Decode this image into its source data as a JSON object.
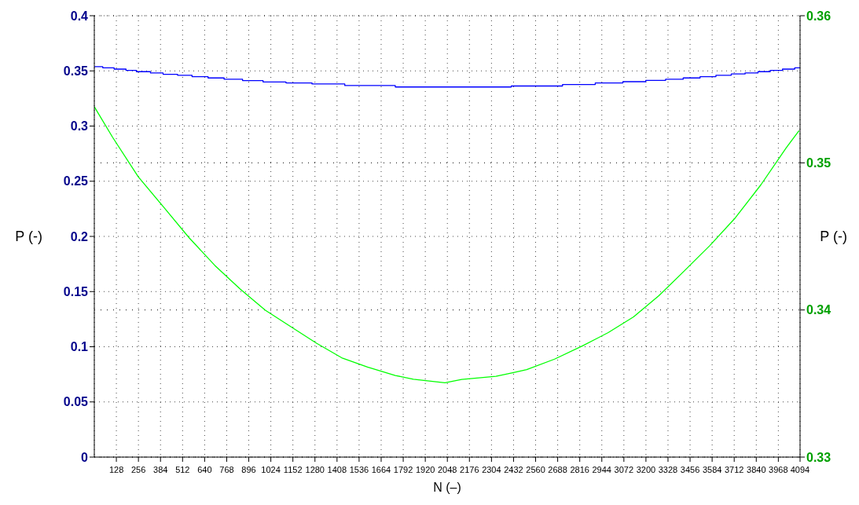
{
  "chart_data": {
    "type": "line",
    "xlabel": "N (–)",
    "ylabel": "P (-)",
    "y2label": "P (-)",
    "xlim": [
      0,
      4094
    ],
    "xticks": [
      128,
      256,
      384,
      512,
      640,
      768,
      896,
      1024,
      1152,
      1280,
      1408,
      1536,
      1664,
      1792,
      1920,
      2048,
      2176,
      2304,
      2432,
      2560,
      2688,
      2816,
      2944,
      3072,
      3200,
      3328,
      3456,
      3584,
      3712,
      3840,
      3968,
      4094
    ],
    "ylim": [
      0,
      0.4
    ],
    "yticks": [
      0,
      0.05,
      0.1,
      0.15,
      0.2,
      0.25,
      0.3,
      0.35,
      0.4
    ],
    "y2lim": [
      0.33,
      0.36
    ],
    "y2ticks": [
      0.33,
      0.34,
      0.35,
      0.36
    ],
    "grid": true,
    "series": [
      {
        "type": "step",
        "color": "#0000ff",
        "x": [
          0,
          49,
          115,
          184,
          244,
          326,
          399,
          483,
          567,
          660,
          753,
          860,
          979,
          1112,
          1263,
          1453,
          1746,
          2419,
          2716,
          2906,
          3066,
          3199,
          3314,
          3416,
          3514,
          3606,
          3695,
          3775,
          3850,
          3921,
          3992,
          4063,
          4094
        ],
        "values": [
          0.3538,
          0.3528,
          0.3516,
          0.3504,
          0.3493,
          0.3481,
          0.3469,
          0.346,
          0.3448,
          0.3436,
          0.3424,
          0.3412,
          0.34,
          0.3391,
          0.3381,
          0.3367,
          0.3354,
          0.3363,
          0.3377,
          0.339,
          0.3402,
          0.3414,
          0.3424,
          0.3436,
          0.3448,
          0.346,
          0.3472,
          0.3481,
          0.3493,
          0.3504,
          0.3516,
          0.3528,
          0.3528
        ]
      },
      {
        "axis": "y2",
        "color": "#00ff00",
        "x": [
          0,
          106,
          255,
          403,
          549,
          699,
          846,
          992,
          1142,
          1289,
          1435,
          1585,
          1746,
          1851,
          2034,
          2131,
          2330,
          2427,
          2508,
          2670,
          2832,
          2981,
          3128,
          3275,
          3424,
          3571,
          3719,
          3867,
          4014,
          4088
        ],
        "values": [
          0.35381,
          0.35174,
          0.34905,
          0.34698,
          0.34492,
          0.34303,
          0.34142,
          0.33998,
          0.33885,
          0.33774,
          0.33675,
          0.33612,
          0.33555,
          0.33529,
          0.33505,
          0.33528,
          0.33549,
          0.33573,
          0.33594,
          0.33666,
          0.33756,
          0.33846,
          0.33953,
          0.34097,
          0.34267,
          0.34438,
          0.34627,
          0.34851,
          0.35102,
          0.35219
        ]
      }
    ]
  }
}
